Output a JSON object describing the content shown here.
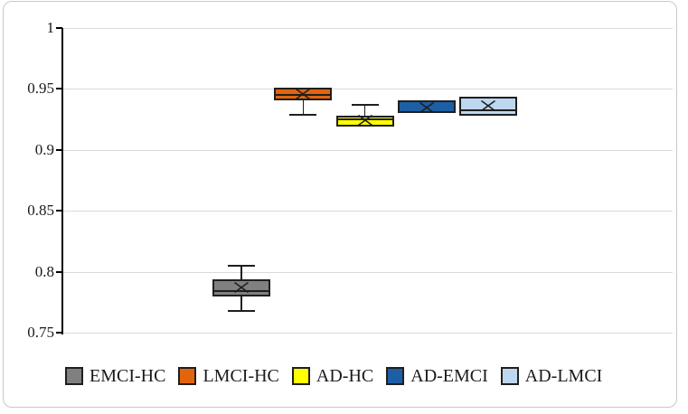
{
  "figure": {
    "background": "#ffffff",
    "border_color": "#c9c9c9"
  },
  "colors": {
    "grid": "#d9d9d9",
    "axis": "#000000",
    "box_border": "#1f1f1f",
    "text": "#1a1a1a"
  },
  "chart_data": {
    "type": "box",
    "title": "",
    "xlabel": "",
    "ylabel": "",
    "ylim": [
      0.75,
      1.0
    ],
    "grid": "horizontal",
    "legend_position": "bottom",
    "y_ticks": [
      {
        "value": 1.0,
        "label": "1"
      },
      {
        "value": 0.95,
        "label": "0.95"
      },
      {
        "value": 0.9,
        "label": "0.9"
      },
      {
        "value": 0.85,
        "label": "0.85"
      },
      {
        "value": 0.8,
        "label": "0.8"
      },
      {
        "value": 0.75,
        "label": "0.75"
      }
    ],
    "categories": [
      "EMCI-HC",
      "LMCI-HC",
      "AD-HC",
      "AD-EMCI",
      "AD-LMCI"
    ],
    "boxes": [
      {
        "label": "EMCI-HC",
        "fill": "#808080",
        "whisker_low": 0.768,
        "q1": 0.78,
        "median": 0.784,
        "q3": 0.794,
        "whisker_high": 0.805,
        "mean": 0.787
      },
      {
        "label": "LMCI-HC",
        "fill": "#E2650D",
        "whisker_low": 0.929,
        "q1": 0.941,
        "median": 0.945,
        "q3": 0.951,
        "whisker_high": null,
        "mean": 0.946
      },
      {
        "label": "AD-HC",
        "fill": "#FFFF00",
        "whisker_low": null,
        "q1": 0.919,
        "median": 0.925,
        "q3": 0.928,
        "whisker_high": 0.937,
        "mean": 0.924
      },
      {
        "label": "AD-EMCI",
        "fill": "#1D5FA5",
        "whisker_low": null,
        "q1": 0.93,
        "median": 0.93,
        "q3": 0.941,
        "whisker_high": null,
        "mean": 0.935
      },
      {
        "label": "AD-LMCI",
        "fill": "#BDD7EE",
        "whisker_low": null,
        "q1": 0.928,
        "median": 0.9325,
        "q3": 0.9435,
        "whisker_high": null,
        "mean": 0.936
      }
    ],
    "legend": [
      "EMCI-HC",
      "LMCI-HC",
      "AD-HC",
      "AD-EMCI",
      "AD-LMCI"
    ]
  }
}
